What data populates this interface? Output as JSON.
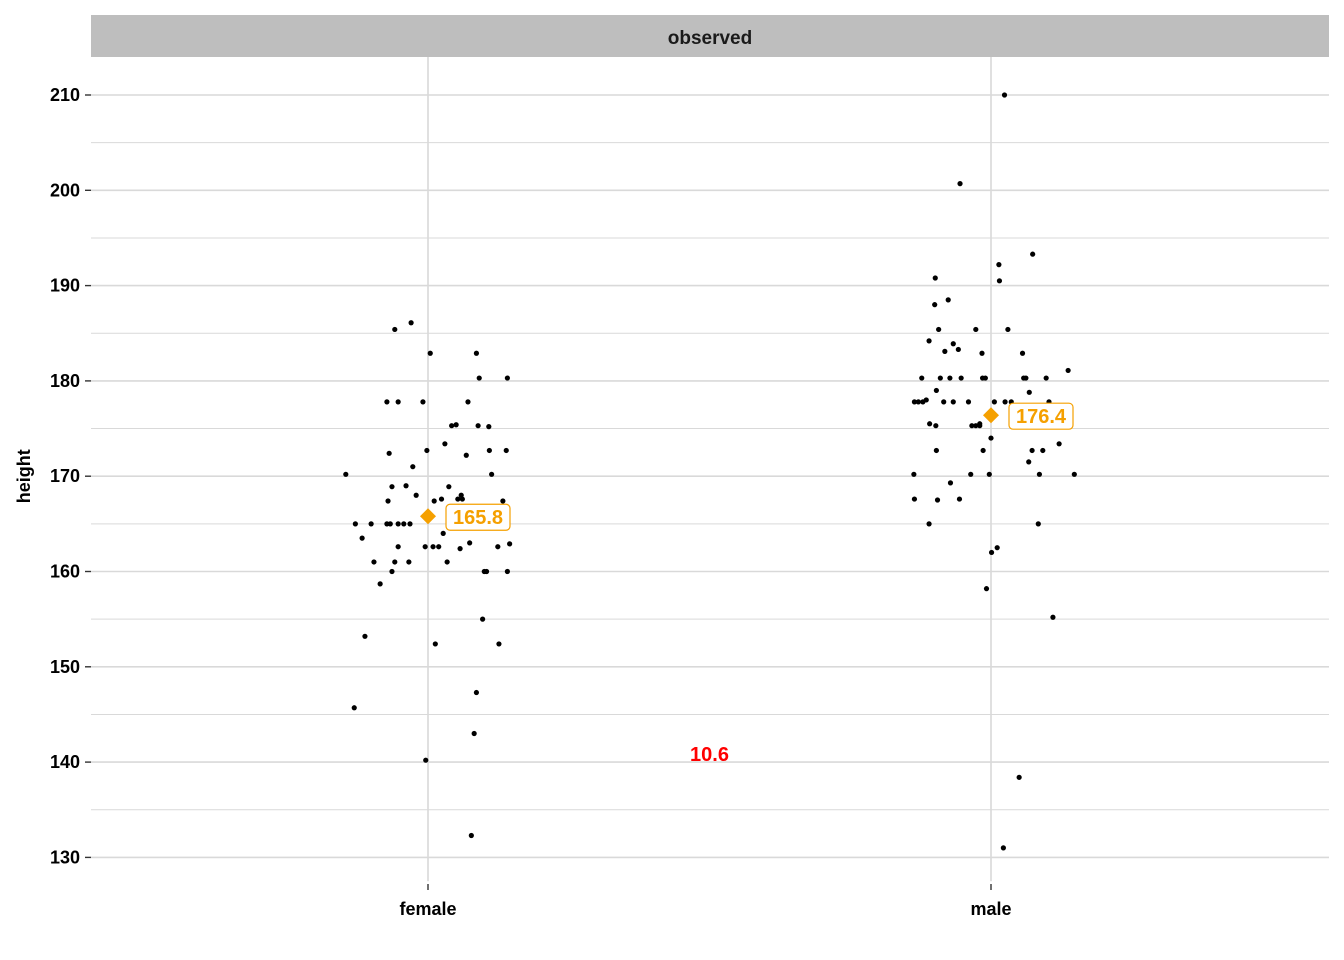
{
  "chart_data": {
    "type": "scatter",
    "facet_title": "observed",
    "xlabel": "",
    "ylabel": "height",
    "categories": [
      "female",
      "male"
    ],
    "ylim": [
      127,
      214
    ],
    "yticks": [
      130,
      140,
      150,
      160,
      170,
      180,
      190,
      200,
      210
    ],
    "grid": true,
    "colors": {
      "points": "#000000",
      "mean": "#f5a000",
      "difference": "#ff0000",
      "grid": "#d9d9d9",
      "strip": "#bebebe"
    },
    "series": [
      {
        "category": "female",
        "points": [
          [
            -0.146,
            170.2
          ],
          [
            -0.131,
            145.7
          ],
          [
            -0.129,
            165.0
          ],
          [
            -0.117,
            163.5
          ],
          [
            -0.112,
            153.2
          ],
          [
            -0.101,
            165.0
          ],
          [
            -0.096,
            161.0
          ],
          [
            -0.085,
            158.7
          ],
          [
            -0.073,
            177.8
          ],
          [
            -0.073,
            165.0
          ],
          [
            -0.071,
            167.4
          ],
          [
            -0.069,
            172.4
          ],
          [
            -0.067,
            165.0
          ],
          [
            -0.064,
            168.9
          ],
          [
            -0.064,
            160.0
          ],
          [
            -0.059,
            185.4
          ],
          [
            -0.059,
            161.0
          ],
          [
            -0.053,
            177.8
          ],
          [
            -0.053,
            162.6
          ],
          [
            -0.053,
            165.0
          ],
          [
            -0.043,
            165.0
          ],
          [
            -0.039,
            169.0
          ],
          [
            -0.034,
            161.0
          ],
          [
            -0.032,
            165.0
          ],
          [
            -0.03,
            186.1
          ],
          [
            -0.027,
            171.0
          ],
          [
            -0.021,
            168.0
          ],
          [
            -0.009,
            177.8
          ],
          [
            -0.005,
            162.6
          ],
          [
            -0.004,
            140.2
          ],
          [
            -0.002,
            172.7
          ],
          [
            0.004,
            182.9
          ],
          [
            0.009,
            162.6
          ],
          [
            0.011,
            167.4
          ],
          [
            0.013,
            152.4
          ],
          [
            0.019,
            162.6
          ],
          [
            0.024,
            167.6
          ],
          [
            0.027,
            164.0
          ],
          [
            0.03,
            173.4
          ],
          [
            0.034,
            161.0
          ],
          [
            0.037,
            168.9
          ],
          [
            0.042,
            175.3
          ],
          [
            0.05,
            175.4
          ],
          [
            0.053,
            167.6
          ],
          [
            0.057,
            162.4
          ],
          [
            0.059,
            168.0
          ],
          [
            0.061,
            167.6
          ],
          [
            0.068,
            172.2
          ],
          [
            0.071,
            177.8
          ],
          [
            0.074,
            163.0
          ],
          [
            0.077,
            132.3
          ],
          [
            0.082,
            143.0
          ],
          [
            0.086,
            147.3
          ],
          [
            0.086,
            182.9
          ],
          [
            0.089,
            175.3
          ],
          [
            0.091,
            180.3
          ],
          [
            0.095,
            165.0
          ],
          [
            0.097,
            155.0
          ],
          [
            0.1,
            160.0
          ],
          [
            0.104,
            160.0
          ],
          [
            0.108,
            175.2
          ],
          [
            0.109,
            172.7
          ],
          [
            0.113,
            170.2
          ],
          [
            0.124,
            162.6
          ],
          [
            0.126,
            152.4
          ],
          [
            0.133,
            167.4
          ],
          [
            0.139,
            172.7
          ],
          [
            0.141,
            160.0
          ],
          [
            0.141,
            180.3
          ],
          [
            0.145,
            162.9
          ]
        ],
        "mean": 165.8
      },
      {
        "category": "male",
        "points": [
          [
            -0.137,
            170.2
          ],
          [
            -0.136,
            177.8
          ],
          [
            -0.136,
            167.6
          ],
          [
            -0.129,
            177.8
          ],
          [
            -0.123,
            180.3
          ],
          [
            -0.121,
            177.8
          ],
          [
            -0.115,
            178.0
          ],
          [
            -0.11,
            184.2
          ],
          [
            -0.11,
            165.0
          ],
          [
            -0.109,
            175.5
          ],
          [
            -0.1,
            188.0
          ],
          [
            -0.099,
            190.8
          ],
          [
            -0.098,
            175.3
          ],
          [
            -0.097,
            179.0
          ],
          [
            -0.097,
            172.7
          ],
          [
            -0.095,
            167.5
          ],
          [
            -0.093,
            185.4
          ],
          [
            -0.09,
            180.3
          ],
          [
            -0.084,
            177.8
          ],
          [
            -0.082,
            183.1
          ],
          [
            -0.076,
            188.5
          ],
          [
            -0.073,
            180.3
          ],
          [
            -0.072,
            169.3
          ],
          [
            -0.067,
            177.8
          ],
          [
            -0.067,
            183.9
          ],
          [
            -0.058,
            183.3
          ],
          [
            -0.056,
            167.6
          ],
          [
            -0.055,
            200.7
          ],
          [
            -0.053,
            180.3
          ],
          [
            -0.04,
            177.8
          ],
          [
            -0.036,
            170.2
          ],
          [
            -0.034,
            175.3
          ],
          [
            -0.027,
            185.4
          ],
          [
            -0.027,
            175.3
          ],
          [
            -0.02,
            175.3
          ],
          [
            -0.02,
            175.5
          ],
          [
            -0.016,
            182.9
          ],
          [
            -0.015,
            180.3
          ],
          [
            -0.014,
            172.7
          ],
          [
            -0.01,
            180.3
          ],
          [
            -0.008,
            158.2
          ],
          [
            0.0,
            174.0
          ],
          [
            -0.003,
            170.2
          ],
          [
            0.001,
            162.0
          ],
          [
            0.006,
            177.8
          ],
          [
            0.011,
            162.5
          ],
          [
            0.014,
            192.2
          ],
          [
            0.015,
            190.5
          ],
          [
            0.022,
            131.0
          ],
          [
            0.024,
            210.0
          ],
          [
            0.025,
            177.8
          ],
          [
            0.03,
            185.4
          ],
          [
            0.036,
            177.8
          ],
          [
            0.05,
            138.4
          ],
          [
            0.056,
            182.9
          ],
          [
            0.058,
            180.3
          ],
          [
            0.062,
            180.3
          ],
          [
            0.067,
            171.5
          ],
          [
            0.068,
            178.8
          ],
          [
            0.073,
            172.7
          ],
          [
            0.074,
            193.3
          ],
          [
            0.084,
            165.0
          ],
          [
            0.086,
            170.2
          ],
          [
            0.088,
            176.0
          ],
          [
            0.092,
            172.7
          ],
          [
            0.098,
            180.3
          ],
          [
            0.103,
            177.8
          ],
          [
            0.11,
            155.2
          ],
          [
            0.121,
            173.4
          ],
          [
            0.125,
            175.3
          ],
          [
            0.137,
            181.1
          ],
          [
            0.148,
            170.2
          ]
        ],
        "mean": 176.4
      }
    ],
    "mean_labels": [
      "165.8",
      "176.4"
    ],
    "difference_label": "10.6",
    "difference_value": 10.6
  }
}
